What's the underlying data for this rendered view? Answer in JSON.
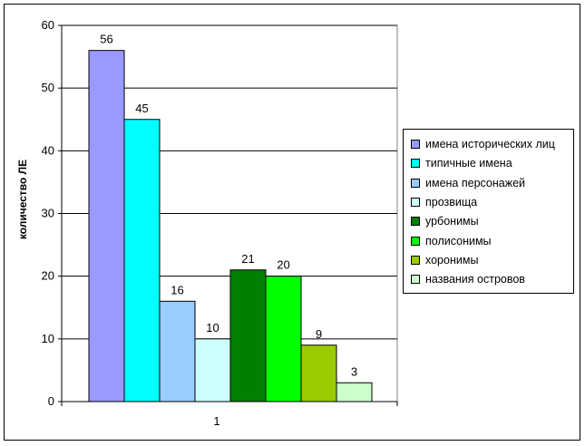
{
  "chart_data": {
    "type": "bar",
    "categories": [
      "1"
    ],
    "ylabel": "количество ЛЕ",
    "ylim": [
      0,
      60
    ],
    "yticks": [
      0,
      10,
      20,
      30,
      40,
      50,
      60
    ],
    "grid": true,
    "legend_position": "right",
    "series": [
      {
        "name": "имена исторических лиц",
        "values": [
          56
        ],
        "color": "#9999ff"
      },
      {
        "name": "типичные имена",
        "values": [
          45
        ],
        "color": "#00ffff"
      },
      {
        "name": "имена персонажей",
        "values": [
          16
        ],
        "color": "#99ccff"
      },
      {
        "name": "прозвища",
        "values": [
          10
        ],
        "color": "#ccffff"
      },
      {
        "name": "урбонимы",
        "values": [
          21
        ],
        "color": "#008000"
      },
      {
        "name": "полисонимы",
        "values": [
          20
        ],
        "color": "#00ff00"
      },
      {
        "name": "хоронимы",
        "values": [
          9
        ],
        "color": "#99cc00"
      },
      {
        "name": "названия островов",
        "values": [
          3
        ],
        "color": "#ccffcc"
      }
    ]
  }
}
